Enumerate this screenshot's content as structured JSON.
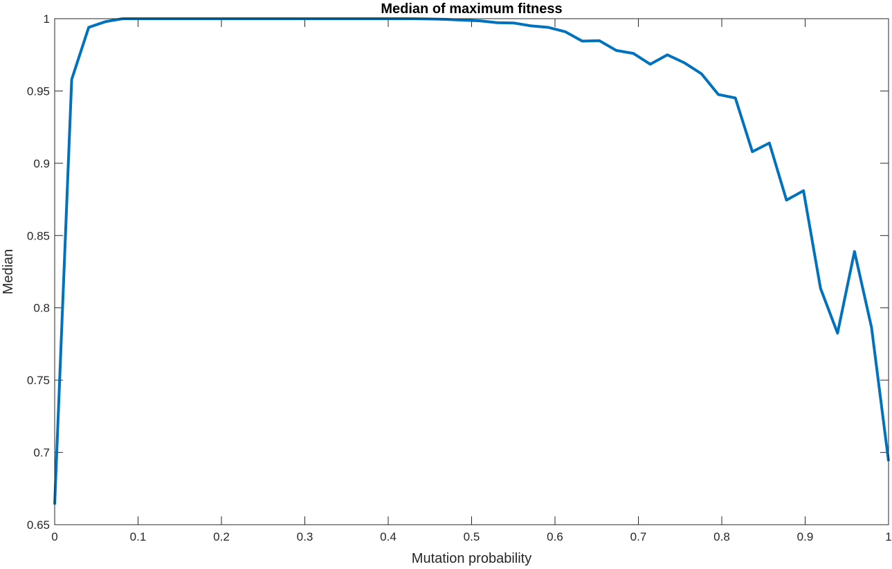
{
  "chart_data": {
    "type": "line",
    "title": "Median of maximum fitness",
    "xlabel": "Mutation probability",
    "ylabel": "Median",
    "xlim": [
      0,
      1
    ],
    "ylim": [
      0.65,
      1
    ],
    "grid": false,
    "box": true,
    "x_ticks": [
      0,
      0.1,
      0.2,
      0.3,
      0.4,
      0.5,
      0.6,
      0.7,
      0.8,
      0.9,
      1
    ],
    "x_tick_labels": [
      "0",
      "0.1",
      "0.2",
      "0.3",
      "0.4",
      "0.5",
      "0.6",
      "0.7",
      "0.8",
      "0.9",
      "1"
    ],
    "y_ticks": [
      0.65,
      0.7,
      0.75,
      0.8,
      0.85,
      0.9,
      0.95,
      1
    ],
    "y_tick_labels": [
      "0.65",
      "0.7",
      "0.75",
      "0.8",
      "0.85",
      "0.9",
      "0.95",
      "1"
    ],
    "series": [
      {
        "color": "#0072bd",
        "x": [
          0,
          0.0204,
          0.0408,
          0.0612,
          0.0816,
          0.102,
          0.1224,
          0.1429,
          0.1633,
          0.1837,
          0.2041,
          0.2245,
          0.2449,
          0.2653,
          0.2857,
          0.3061,
          0.3265,
          0.3469,
          0.3673,
          0.3878,
          0.4082,
          0.4286,
          0.449,
          0.4694,
          0.4898,
          0.5102,
          0.5306,
          0.551,
          0.5714,
          0.5918,
          0.6122,
          0.6327,
          0.6531,
          0.6735,
          0.6939,
          0.7143,
          0.7347,
          0.7551,
          0.7755,
          0.7959,
          0.8163,
          0.8367,
          0.8571,
          0.8776,
          0.898,
          0.9184,
          0.9388,
          0.9592,
          0.9796,
          1
        ],
        "y": [
          0.664,
          0.958,
          0.994,
          0.998,
          1.0,
          1.0,
          1.0,
          1.0,
          1.0,
          1.0,
          1.0,
          1.0,
          1.0,
          1.0,
          1.0,
          1.0,
          1.0,
          1.0,
          1.0,
          1.0,
          1.0,
          1.0,
          0.9998,
          0.9995,
          0.999,
          0.9985,
          0.9972,
          0.997,
          0.995,
          0.994,
          0.991,
          0.9845,
          0.9848,
          0.978,
          0.976,
          0.9685,
          0.975,
          0.9695,
          0.962,
          0.9475,
          0.9452,
          0.908,
          0.914,
          0.8745,
          0.881,
          0.8135,
          0.7825,
          0.839,
          0.7865,
          0.694
        ]
      }
    ]
  }
}
